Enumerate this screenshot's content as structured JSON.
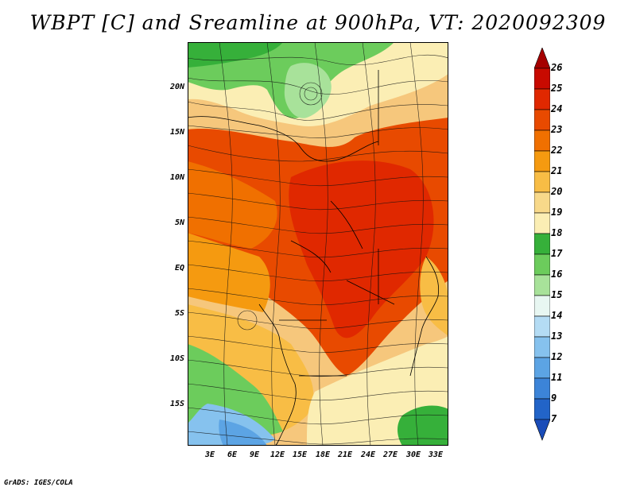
{
  "title": "WBPT [C] and Sreamline at 900hPa, VT: 2020092309",
  "credit": "GrADS: IGES/COLA",
  "map": {
    "lat_labels": [
      "20N",
      "15N",
      "10N",
      "5N",
      "EQ",
      "5S",
      "10S",
      "15S"
    ],
    "lon_labels": [
      "3E",
      "6E",
      "9E",
      "12E",
      "15E",
      "18E",
      "21E",
      "24E",
      "27E",
      "30E",
      "33E"
    ]
  },
  "colorbar": {
    "labels": [
      "26",
      "25",
      "24",
      "23",
      "22",
      "21",
      "20",
      "19",
      "18",
      "17",
      "16",
      "15",
      "14",
      "13",
      "12",
      "11",
      "9",
      "7"
    ],
    "colors": [
      "#a50000",
      "#c80a00",
      "#e02800",
      "#e84a00",
      "#f07000",
      "#f59a10",
      "#f8bd45",
      "#f8d98a",
      "#fbeeb4",
      "#36b03a",
      "#6ccc5c",
      "#a8e29a",
      "#e8f7f2",
      "#b4dcf4",
      "#86c2ee",
      "#5ca4e4",
      "#3c84d8",
      "#2264c8",
      "#1a4cb8"
    ]
  }
}
